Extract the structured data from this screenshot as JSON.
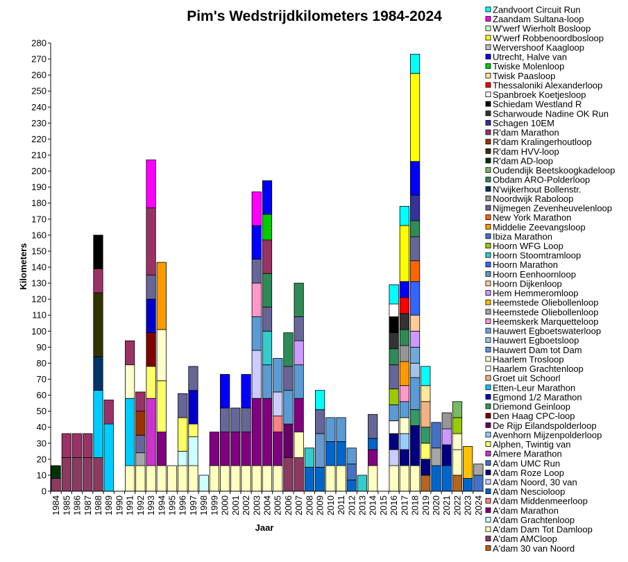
{
  "chart_data": {
    "type": "bar",
    "stacked": true,
    "title": "Pim's Wedstrijdkilometers 1984-2024",
    "xlabel": "Jaar",
    "ylabel": "Kilometers",
    "ylim": [
      0,
      280
    ],
    "ytick_step": 10,
    "grid": false,
    "legend_position": "right",
    "categories": [
      "1984",
      "1985",
      "1986",
      "1987",
      "1988",
      "1989",
      "1990",
      "1991",
      "1992",
      "1993",
      "1994",
      "1995",
      "1996",
      "1997",
      "1998",
      "1999",
      "2000",
      "2001",
      "2002",
      "2003",
      "2004",
      "2005",
      "2006",
      "2007",
      "2008",
      "2009",
      "2010",
      "2011",
      "2012",
      "2013",
      "2014",
      "2015",
      "2016",
      "2017",
      "2018",
      "2019",
      "2020",
      "2021",
      "2022",
      "2023",
      "2024"
    ],
    "series": [
      {
        "name": "A'dam 30 van Noord",
        "color": "#b5651d",
        "values": {
          "2019": 10,
          "2022": 10
        }
      },
      {
        "name": "A'dam AMCloop",
        "color": "#8b3a62",
        "values": {
          "1984": 8,
          "1985": 21,
          "1986": 21,
          "1987": 21,
          "1988": 21,
          "2006": 21,
          "2007": 21
        }
      },
      {
        "name": "A'dam Dam Tot Damloop",
        "color": "#ffffc0",
        "values": {
          "1991": 16,
          "1992": 16,
          "1993": 16,
          "1994": 16,
          "1995": 16,
          "1996": 16,
          "1997": 16,
          "1999": 16,
          "2000": 16,
          "2001": 16,
          "2002": 16,
          "2003": 16,
          "2004": 16,
          "2005": 16,
          "2007": 16,
          "2010": 16,
          "2011": 16,
          "2014": 16,
          "2016": 16,
          "2017": 16,
          "2018": 16,
          "2022": 16
        }
      },
      {
        "name": "A'dam Grachtenloop",
        "color": "#ccffff",
        "values": {
          "1996": 9,
          "1997": 18,
          "1998": 10
        }
      },
      {
        "name": "A'dam Marathon",
        "color": "#800080",
        "values": {
          "1994": 21,
          "1999": 21,
          "2000": 21,
          "2001": 21,
          "2002": 21,
          "2003": 42,
          "2004": 42,
          "2005": 21,
          "2007": 21,
          "2014": 10
        }
      },
      {
        "name": "A'dam Middenmeerloop",
        "color": "#ff8080",
        "values": {
          "2005": 10
        }
      },
      {
        "name": "A'dam Nescioloop",
        "color": "#0066cc",
        "values": {
          "2008": 15,
          "2009": 15,
          "2010": 15,
          "2011": 15,
          "2012": 7,
          "2014": 7,
          "2020": 16,
          "2021": 16,
          "2023": 8
        }
      },
      {
        "name": "A'dam Noord, 30 van",
        "color": "#ccccff",
        "values": {
          "2003": 30,
          "2005": 15,
          "2016": 10
        }
      },
      {
        "name": "A'dam Roze Loop",
        "color": "#000080",
        "values": {
          "2016": 10,
          "2017": 10,
          "2018": 25,
          "2019": 10,
          "2021": 13
        }
      },
      {
        "name": "A'dam UMC Run",
        "color": "#4472c4",
        "values": {
          "2012": 10,
          "2024": 10
        }
      },
      {
        "name": "Almere Marathon",
        "color": "#cc33cc",
        "values": {
          "1993": 42
        }
      },
      {
        "name": "Alphen, Twintig van",
        "color": "#ffff66",
        "values": {
          "1993": 20,
          "1994": 32,
          "1996": 21,
          "1997": 8,
          "2019": 10
        }
      },
      {
        "name": "Avenhorn Mijzenpolderloop",
        "color": "#99ccff",
        "values": {
          "2017": 10
        }
      },
      {
        "name": "De Rijp Eilandspolderloop",
        "color": "#660066",
        "values": {
          "2006": 21
        }
      },
      {
        "name": "Den Haag CPC-loop",
        "color": "#800000",
        "values": {
          "1993": 21
        }
      },
      {
        "name": "Driemond Geinloop",
        "color": "#339966",
        "values": {
          "2018": 10,
          "2019": 10
        }
      },
      {
        "name": "Egmond 1/2 Marathon",
        "color": "#0000cc",
        "values": {
          "1993": 21,
          "1997": 21
        }
      },
      {
        "name": "Etten-Leur Marathon",
        "color": "#00ccff",
        "values": {
          "1988": 42,
          "1989": 42,
          "1991": 42
        }
      },
      {
        "name": "Groet uit Schoorl",
        "color": "#f4b183",
        "values": {
          "2019": 16
        }
      },
      {
        "name": "Haarlem Grachtenloop",
        "color": "#ffffff",
        "values": {
          "2016": 8
        }
      },
      {
        "name": "Haarlem Trosloop",
        "color": "#ffffcc",
        "values": {
          "1991": 21,
          "1994": 32,
          "2017": 10,
          "2022": 10
        }
      },
      {
        "name": "Hauwert Dam tot Dam",
        "color": "#5b9bd5",
        "values": {
          "2003": 21,
          "2004": 21,
          "2005": 21,
          "2006": 21,
          "2007": 21,
          "2010": 15,
          "2011": 15,
          "2012": 10,
          "2016": 10,
          "2017": 10,
          "2018": 20
        }
      },
      {
        "name": "Hauwert Egboetsloop",
        "color": "#9fc5e8",
        "values": {
          "2018": 9
        }
      },
      {
        "name": "Hauwert Egboetswaterloop",
        "color": "#6fa8dc",
        "values": {
          "2018": 10
        }
      },
      {
        "name": "Heemskerk Marquetteloop",
        "color": "#ff99cc",
        "values": {
          "2003": 21,
          "2017": 10
        }
      },
      {
        "name": "Heemstede Oliebollenloop",
        "color": "#a6a6a6",
        "values": {
          "1992": 8,
          "2020": 11,
          "2024": 7
        }
      },
      {
        "name": "Heemstede Oliebollenloop",
        "color": "#ffc000",
        "values": {
          "2023": 20
        }
      },
      {
        "name": "Hem Hemmeromloop",
        "color": "#cc99ff",
        "values": {
          "2007": 15,
          "2018": 10,
          "2021": 10
        }
      },
      {
        "name": "Hoorn Dijkenloop",
        "color": "#ffcc99",
        "values": {
          "2018": 10
        }
      },
      {
        "name": "Hoorn Eenhoornloop",
        "color": "#6699cc",
        "values": {
          "2009": 21
        }
      },
      {
        "name": "Hoorn Marathon",
        "color": "#3366ff",
        "values": {
          "2018": 21
        }
      },
      {
        "name": "Hoorn Stoomtramloop",
        "color": "#33cccc",
        "values": {
          "2004": 21,
          "2008": 12,
          "2013": 10
        }
      },
      {
        "name": "Hoorn WFG Loop",
        "color": "#99cc00",
        "values": {
          "2016": 10,
          "2022": 10
        }
      },
      {
        "name": "Ibiza Marathon",
        "color": "#4472c4",
        "values": {
          "2020": 16
        }
      },
      {
        "name": "Middelie Zeevangsloop",
        "color": "#ff9900",
        "values": {
          "1994": 42,
          "2017": 15
        }
      },
      {
        "name": "New York Marathon",
        "color": "#ff6600",
        "values": {
          "2018": 13
        }
      },
      {
        "name": "Nijmegen Zevenheuvelenloop",
        "color": "#666699",
        "values": {
          "1992": 11,
          "1993": 15,
          "1996": 15,
          "1997": 15,
          "2000": 15,
          "2001": 15,
          "2002": 15,
          "2003": 15,
          "2004": 15,
          "2006": 15,
          "2007": 15,
          "2009": 15,
          "2014": 15,
          "2016": 15,
          "2018": 15
        }
      },
      {
        "name": "Noordwijk Raboloop",
        "color": "#969696",
        "values": {
          "2017": 10,
          "2021": 10
        }
      },
      {
        "name": "N'wijkerhout Bollenstr.",
        "color": "#003366",
        "values": {
          "1988": 21
        }
      },
      {
        "name": "Obdam ARO-Polderloop",
        "color": "#2e8b57",
        "values": {
          "2004": 21,
          "2006": 21,
          "2007": 21,
          "2016": 10,
          "2017": 10,
          "2018": 10
        }
      },
      {
        "name": "Oudendijk Beetskoogkadeloop",
        "color": "#77bc65",
        "values": {
          "2022": 10
        }
      },
      {
        "name": "R'dam AD-loop",
        "color": "#003300",
        "values": {
          "1984": 8
        }
      },
      {
        "name": "R'dam HVV-loop",
        "color": "#333300",
        "values": {
          "1988": 40
        }
      },
      {
        "name": "R'dam Kralingerhoutloop",
        "color": "#993300",
        "values": {
          "1992": 15
        }
      },
      {
        "name": "R'dam Marathon",
        "color": "#993366",
        "values": {
          "1985": 15,
          "1986": 15,
          "1987": 15,
          "1988": 15,
          "1989": 15,
          "1991": 15,
          "1992": 12,
          "1993": 42,
          "2004": 21
        }
      },
      {
        "name": "Schagen 10EM",
        "color": "#333399",
        "values": {
          "2018": 16
        }
      },
      {
        "name": "Scharwoude Nadine OK Run",
        "color": "#333333",
        "values": {
          "2016": 10,
          "2017": 10
        }
      },
      {
        "name": "Schiedam Westland R",
        "color": "#000000",
        "values": {
          "1988": 21,
          "2016": 10
        }
      },
      {
        "name": "Spanbroek Koetjesloop",
        "color": "#ffffff",
        "values": {
          "2016": 8
        }
      },
      {
        "name": "Thessaloniki Alexanderloop",
        "color": "#ff0000",
        "values": {
          "2017": 10
        }
      },
      {
        "name": "Twisk Paasloop",
        "color": "#ffe699",
        "values": {
          "2019": 10
        }
      },
      {
        "name": "Twiske Molenloop",
        "color": "#00cc00",
        "values": {
          "2004": 16
        }
      },
      {
        "name": "Utrecht, Halve van",
        "color": "#0000ff",
        "values": {
          "1991": 0,
          "1997": 0,
          "2000": 21,
          "2002": 21,
          "2003": 21,
          "2004": 21,
          "2017": 10,
          "2018": 21
        }
      },
      {
        "name": "Wervershoof Kaagloop",
        "color": "#c0c0c0",
        "values": {
          "2018": 0
        }
      },
      {
        "name": "W'werf Robbenoordbosloop",
        "color": "#ffff00",
        "values": {
          "2017": 35,
          "2018": 55
        }
      },
      {
        "name": "W'werf Wierholt Bosloop",
        "color": "#ccffcc",
        "values": {
          "2018": 0
        }
      },
      {
        "name": "Zaandam Sultana-loop",
        "color": "#ff00ff",
        "values": {
          "1993": 30,
          "2003": 21
        }
      },
      {
        "name": "Zandvoort Circuit Run",
        "color": "#00ffff",
        "values": {
          "2009": 12,
          "2016": 12,
          "2017": 12,
          "2018": 12,
          "2019": 12
        }
      }
    ]
  }
}
